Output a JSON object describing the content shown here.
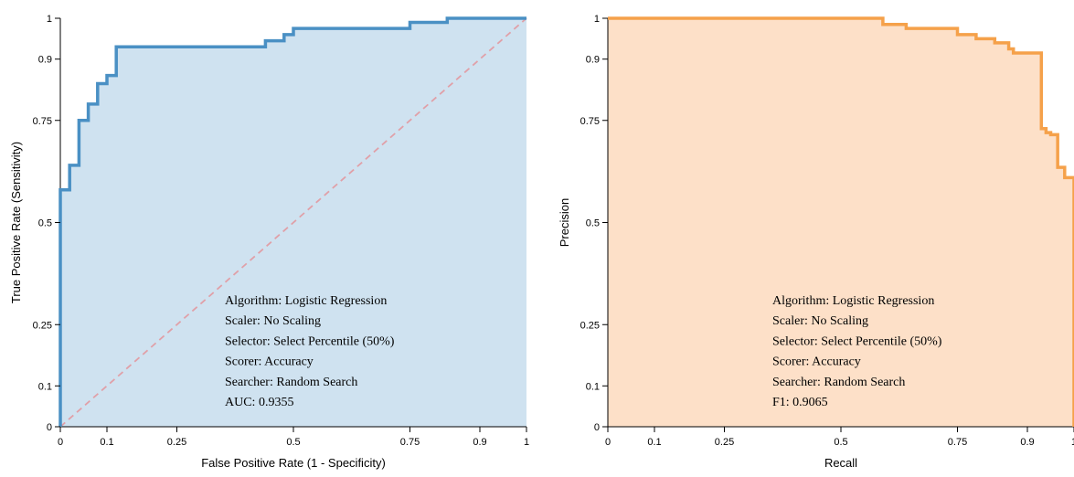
{
  "chart_data": [
    {
      "type": "area",
      "title": "",
      "xlabel": "False Positive Rate (1 - Specificity)",
      "ylabel": "True Positive Rate (Sensitivity)",
      "xlim": [
        0,
        1
      ],
      "ylim": [
        0,
        1
      ],
      "x_ticks": [
        "0",
        "0.1",
        "0.25",
        "0.5",
        "0.75",
        "0.9",
        "1"
      ],
      "y_ticks": [
        "0",
        "0.1",
        "0.25",
        "0.5",
        "0.75",
        "0.9",
        "1"
      ],
      "grid": false,
      "colors": {
        "line": "#4a90c4",
        "fill": "#cfe2f0",
        "diagonal": "#e0a0a8"
      },
      "series": [
        {
          "points": [
            [
              0,
              0
            ],
            [
              0,
              0.58
            ],
            [
              0.02,
              0.58
            ],
            [
              0.02,
              0.64
            ],
            [
              0.04,
              0.64
            ],
            [
              0.04,
              0.75
            ],
            [
              0.06,
              0.75
            ],
            [
              0.06,
              0.79
            ],
            [
              0.08,
              0.79
            ],
            [
              0.08,
              0.84
            ],
            [
              0.1,
              0.84
            ],
            [
              0.1,
              0.86
            ],
            [
              0.12,
              0.86
            ],
            [
              0.12,
              0.93
            ],
            [
              0.44,
              0.93
            ],
            [
              0.44,
              0.945
            ],
            [
              0.48,
              0.945
            ],
            [
              0.48,
              0.96
            ],
            [
              0.5,
              0.96
            ],
            [
              0.5,
              0.975
            ],
            [
              0.75,
              0.975
            ],
            [
              0.75,
              0.99
            ],
            [
              0.83,
              0.99
            ],
            [
              0.83,
              1
            ],
            [
              1,
              1
            ]
          ]
        },
        {
          "points": [
            [
              0,
              0
            ],
            [
              1,
              1
            ]
          ],
          "style": "dashed"
        }
      ],
      "annotation": [
        "Algorithm: Logistic Regression",
        "Scaler: No Scaling",
        "Selector: Select Percentile (50%)",
        "Scorer: Accuracy",
        "Searcher: Random Search",
        "AUC: 0.9355"
      ]
    },
    {
      "type": "area",
      "title": "",
      "xlabel": "Recall",
      "ylabel": "Precision",
      "xlim": [
        0,
        1
      ],
      "ylim": [
        0,
        1
      ],
      "x_ticks": [
        "0",
        "0.1",
        "0.25",
        "0.5",
        "0.75",
        "0.9",
        "1"
      ],
      "y_ticks": [
        "0",
        "0.1",
        "0.25",
        "0.5",
        "0.75",
        "0.9",
        "1"
      ],
      "grid": false,
      "colors": {
        "line": "#f5a14a",
        "fill": "#fde0c8"
      },
      "series": [
        {
          "points": [
            [
              0,
              1
            ],
            [
              0.59,
              1
            ],
            [
              0.59,
              0.985
            ],
            [
              0.64,
              0.985
            ],
            [
              0.64,
              0.975
            ],
            [
              0.75,
              0.975
            ],
            [
              0.75,
              0.96
            ],
            [
              0.79,
              0.96
            ],
            [
              0.79,
              0.95
            ],
            [
              0.83,
              0.95
            ],
            [
              0.83,
              0.94
            ],
            [
              0.86,
              0.94
            ],
            [
              0.86,
              0.925
            ],
            [
              0.87,
              0.925
            ],
            [
              0.87,
              0.915
            ],
            [
              0.93,
              0.915
            ],
            [
              0.93,
              0.73
            ],
            [
              0.94,
              0.73
            ],
            [
              0.94,
              0.72
            ],
            [
              0.95,
              0.72
            ],
            [
              0.95,
              0.715
            ],
            [
              0.965,
              0.715
            ],
            [
              0.965,
              0.635
            ],
            [
              0.98,
              0.635
            ],
            [
              0.98,
              0.61
            ],
            [
              1,
              0.61
            ],
            [
              1,
              0
            ]
          ]
        }
      ],
      "annotation": [
        "Algorithm: Logistic Regression",
        "Scaler: No Scaling",
        "Selector: Select Percentile (50%)",
        "Scorer: Accuracy",
        "Searcher: Random Search",
        "F1: 0.9065"
      ]
    }
  ]
}
